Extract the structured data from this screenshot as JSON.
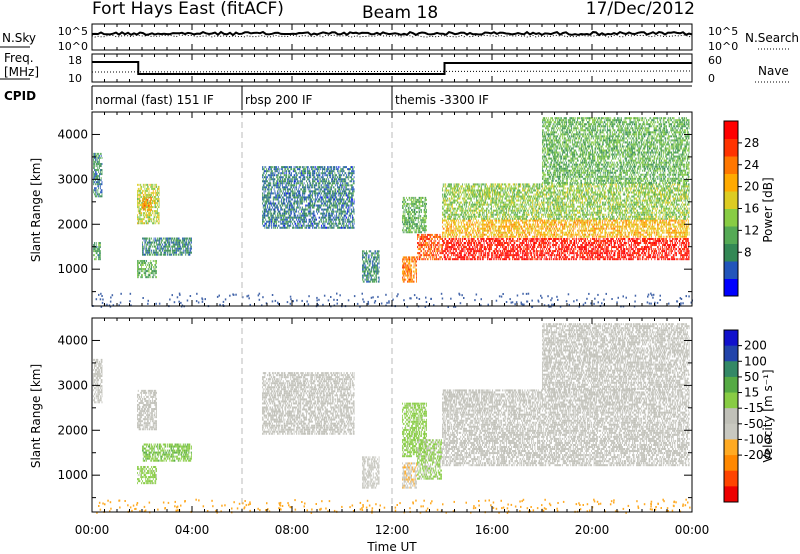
{
  "header": {
    "station": "Fort Hays East (fitACF)",
    "beam": "Beam 18",
    "date": "17/Dec/2012"
  },
  "noise_panel": {
    "left_label": "N.Sky",
    "left_ticks": [
      "10^5",
      "10^0"
    ],
    "right_ticks": [
      "10^5",
      "10^0"
    ],
    "right_label": "N.Search"
  },
  "freq_panel": {
    "left_label_line1": "Freq.",
    "left_label_line2": "[MHz]",
    "left_ticks": [
      "18",
      "10"
    ],
    "right_ticks": [
      "60",
      "0"
    ],
    "right_label": "Nave"
  },
  "cpid": {
    "label": "CPID",
    "segments": [
      {
        "start_hr": 0,
        "end_hr": 6,
        "text": "normal (fast) 151 IF"
      },
      {
        "start_hr": 6,
        "end_hr": 12,
        "text": "rbsp 200 IF"
      },
      {
        "start_hr": 12,
        "end_hr": 24,
        "text": "themis -3300 IF"
      }
    ]
  },
  "axes": {
    "ylabel": "Slant Range [km]",
    "xlabel": "Time UT",
    "xticks": [
      "00:00",
      "04:00",
      "08:00",
      "12:00",
      "16:00",
      "20:00",
      "00:00"
    ],
    "xtick_hours": [
      0,
      4,
      8,
      12,
      16,
      20,
      24
    ],
    "yticks": [
      "1000",
      "2000",
      "3000",
      "4000"
    ],
    "ytick_values": [
      1000,
      2000,
      3000,
      4000
    ]
  },
  "colors": {
    "dashed_boundary": "#bbbbbb",
    "power_scale": [
      "#0000ff",
      "#2255bb",
      "#338855",
      "#55aa55",
      "#88cc44",
      "#ddcc22",
      "#ffaa00",
      "#ff7700",
      "#ff3300",
      "#ff0000"
    ],
    "velocity_scale": [
      "#ee0000",
      "#ff4400",
      "#ff8800",
      "#ffaa22",
      "#c8c8c0",
      "#c0c0b8",
      "#88cc44",
      "#55aa44",
      "#338866",
      "#2244aa",
      "#1111cc"
    ]
  },
  "chart_data": [
    {
      "type": "heatmap",
      "title": "Power",
      "colorbar_label": "Power [dB]",
      "colorbar_ticks": [
        "8",
        "12",
        "16",
        "20",
        "24",
        "28"
      ],
      "colorbar_tick_values": [
        8,
        12,
        16,
        20,
        24,
        28
      ],
      "zlim": [
        0,
        32
      ],
      "xlim_hours": [
        0,
        24
      ],
      "ylim_km": [
        180,
        4500
      ],
      "regions": [
        {
          "t0": 0.05,
          "t1": 0.4,
          "r0": 2600,
          "r1": 3600,
          "z": 8
        },
        {
          "t0": 0.05,
          "t1": 0.35,
          "r0": 1200,
          "r1": 1600,
          "z": 10
        },
        {
          "t0": 1.8,
          "t1": 2.7,
          "r0": 2000,
          "r1": 2900,
          "z": 16
        },
        {
          "t0": 2.0,
          "t1": 2.4,
          "r0": 2300,
          "r1": 2600,
          "z": 22
        },
        {
          "t0": 2.0,
          "t1": 4.0,
          "r0": 1300,
          "r1": 1700,
          "z": 8
        },
        {
          "t0": 1.8,
          "t1": 2.6,
          "r0": 800,
          "r1": 1200,
          "z": 12
        },
        {
          "t0": 6.8,
          "t1": 10.5,
          "r0": 1900,
          "r1": 3300,
          "z": 7
        },
        {
          "t0": 10.8,
          "t1": 11.5,
          "r0": 700,
          "r1": 1400,
          "z": 8
        },
        {
          "t0": 12.4,
          "t1": 13.4,
          "r0": 1800,
          "r1": 2600,
          "z": 12
        },
        {
          "t0": 12.4,
          "t1": 13.0,
          "r0": 700,
          "r1": 1300,
          "z": 24
        },
        {
          "t0": 13.0,
          "t1": 14.0,
          "r0": 1200,
          "r1": 1800,
          "z": 26
        },
        {
          "t0": 14.0,
          "t1": 23.9,
          "r0": 1200,
          "r1": 1700,
          "z": 30
        },
        {
          "t0": 14.0,
          "t1": 23.9,
          "r0": 1700,
          "r1": 2100,
          "z": 20
        },
        {
          "t0": 14.0,
          "t1": 23.9,
          "r0": 2100,
          "r1": 2900,
          "z": 14
        },
        {
          "t0": 18.0,
          "t1": 23.9,
          "r0": 2900,
          "r1": 4400,
          "z": 12
        }
      ]
    },
    {
      "type": "heatmap",
      "title": "Velocity",
      "colorbar_label": "Velocity [m s⁻¹]",
      "colorbar_ticks": [
        "200",
        "100",
        "50",
        "15",
        "-15",
        "-50",
        "-100",
        "-200"
      ],
      "colorbar_tick_values": [
        200,
        100,
        50,
        15,
        -15,
        -50,
        -100,
        -200
      ],
      "zlim": [
        -250,
        250
      ],
      "xlim_hours": [
        0,
        24
      ],
      "ylim_km": [
        180,
        4500
      ],
      "regions": [
        {
          "t0": 0.05,
          "t1": 0.4,
          "r0": 2600,
          "r1": 3600,
          "z": 0
        },
        {
          "t0": 1.8,
          "t1": 2.6,
          "r0": 2000,
          "r1": 2900,
          "z": 0
        },
        {
          "t0": 2.0,
          "t1": 4.0,
          "r0": 1300,
          "r1": 1700,
          "z": 60
        },
        {
          "t0": 1.8,
          "t1": 2.6,
          "r0": 800,
          "r1": 1200,
          "z": 40
        },
        {
          "t0": 6.8,
          "t1": 10.5,
          "r0": 1900,
          "r1": 3300,
          "z": 0
        },
        {
          "t0": 10.8,
          "t1": 11.5,
          "r0": 700,
          "r1": 1400,
          "z": -40
        },
        {
          "t0": 12.4,
          "t1": 13.4,
          "r0": 1400,
          "r1": 2600,
          "z": 40
        },
        {
          "t0": 12.4,
          "t1": 13.0,
          "r0": 700,
          "r1": 1300,
          "z": -60
        },
        {
          "t0": 13.0,
          "t1": 14.0,
          "r0": 900,
          "r1": 1800,
          "z": 30
        },
        {
          "t0": 14.0,
          "t1": 23.9,
          "r0": 1200,
          "r1": 2900,
          "z": 0
        },
        {
          "t0": 18.0,
          "t1": 23.9,
          "r0": 2900,
          "r1": 4400,
          "z": 0
        }
      ]
    }
  ]
}
